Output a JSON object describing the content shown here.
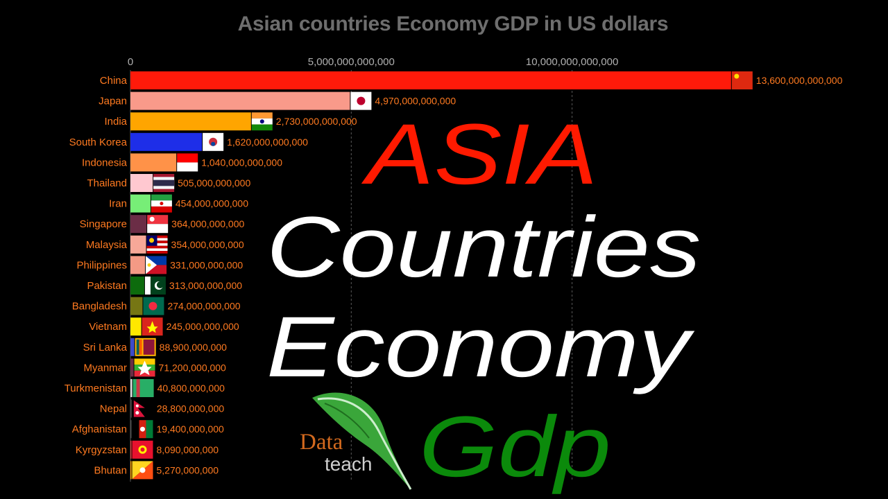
{
  "chart_data": {
    "type": "bar",
    "title": "Asian countries Economy GDP in US dollars",
    "xlim": [
      0,
      14200000000000
    ],
    "x_ticks": [
      0,
      5000000000000,
      10000000000000
    ],
    "x_tick_labels": [
      "0",
      "5,000,000,000,000",
      "10,000,000,000,000"
    ],
    "grid": true,
    "categories": [
      "China",
      "Japan",
      "India",
      "South Korea",
      "Indonesia",
      "Thailand",
      "Iran",
      "Singapore",
      "Malaysia",
      "Philippines",
      "Pakistan",
      "Bangladesh",
      "Vietnam",
      "Sri Lanka",
      "Myanmar",
      "Turkmenistan",
      "Nepal",
      "Afghanistan",
      "Kyrgyzstan",
      "Bhutan"
    ],
    "values": [
      13600000000000,
      4970000000000,
      2730000000000,
      1620000000000,
      1040000000000,
      505000000000,
      454000000000,
      364000000000,
      354000000000,
      331000000000,
      313000000000,
      274000000000,
      245000000000,
      88900000000,
      71200000000,
      40800000000,
      28800000000,
      19400000000,
      8090000000,
      5270000000
    ],
    "value_labels": [
      "13,600,000,000,000",
      "4,970,000,000,000",
      "2,730,000,000,000",
      "1,620,000,000,000",
      "1,040,000,000,000",
      "505,000,000,000",
      "454,000,000,000",
      "364,000,000,000",
      "354,000,000,000",
      "331,000,000,000",
      "313,000,000,000",
      "274,000,000,000",
      "245,000,000,000",
      "88,900,000,000",
      "71,200,000,000",
      "40,800,000,000",
      "28,800,000,000",
      "19,400,000,000",
      "8,090,000,000",
      "5,270,000,000"
    ],
    "bar_colors": [
      "#ff1a0a",
      "#f99a8a",
      "#ffa500",
      "#1e2ee8",
      "#ff9248",
      "#ffc8d0",
      "#77ee77",
      "#6b2d46",
      "#f7a898",
      "#f49a85",
      "#0d6b0d",
      "#767614",
      "#ffe800",
      "#3d4bc9",
      "#6b2d46",
      "#d9d9d9",
      "#444444",
      "#505050",
      "#e03c3c",
      "#ffa000"
    ],
    "flag_icons": [
      "flag-china-icon",
      "flag-japan-icon",
      "flag-india-icon",
      "flag-south-korea-icon",
      "flag-indonesia-icon",
      "flag-thailand-icon",
      "flag-iran-icon",
      "flag-singapore-icon",
      "flag-malaysia-icon",
      "flag-philippines-icon",
      "flag-pakistan-icon",
      "flag-bangladesh-icon",
      "flag-vietnam-icon",
      "flag-sri-lanka-icon",
      "flag-myanmar-icon",
      "flag-turkmenistan-icon",
      "flag-nepal-icon",
      "flag-afghanistan-icon",
      "flag-kyrgyzstan-icon",
      "flag-bhutan-icon"
    ],
    "label_color": "#ff7a20",
    "tick_color": "#b0b0b0",
    "grid_color": "#5a5a5a"
  },
  "overlay": {
    "line1": "ASIA",
    "line2": "Countries",
    "line3": "Economy",
    "line4": "Gdp",
    "colors": {
      "asia": "#ff1a00",
      "white": "#ffffff",
      "gdp": "#0b8a0b"
    }
  },
  "logo": {
    "word1": "Data",
    "word2": "teach",
    "icon": "feather-quill-icon"
  }
}
